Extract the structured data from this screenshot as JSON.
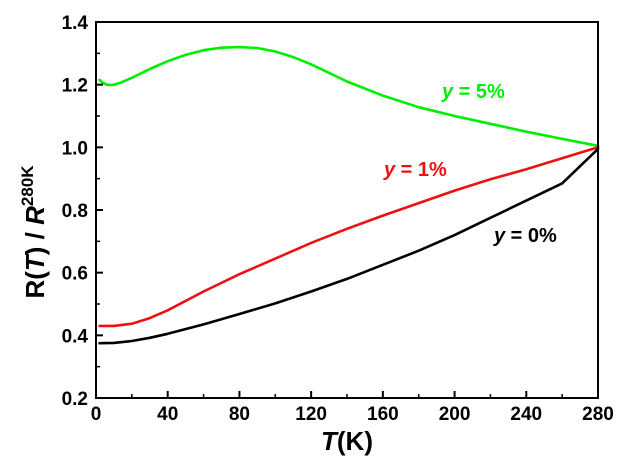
{
  "chart_data": {
    "type": "line",
    "xlabel": "T(K)",
    "ylabel": "R(T) / R280K",
    "xlabel_parts": {
      "var": "T",
      "unit": "(K)"
    },
    "ylabel_parts": {
      "num": "R(",
      "num_var": "T",
      "num_close": ")",
      "slash": " / ",
      "den": "R",
      "sup": "280K"
    },
    "xlim": [
      0,
      280
    ],
    "ylim": [
      0.2,
      1.4
    ],
    "x_ticks": [
      0,
      40,
      80,
      120,
      160,
      200,
      240,
      280
    ],
    "y_ticks": [
      0.2,
      0.4,
      0.6,
      0.8,
      1.0,
      1.2,
      1.4
    ],
    "x_tick_labels": [
      "0",
      "40",
      "80",
      "120",
      "160",
      "200",
      "240",
      "280"
    ],
    "y_tick_labels": [
      "0.2",
      "0.4",
      "0.6",
      "0.8",
      "1.0",
      "1.2",
      "1.4"
    ],
    "grid": false,
    "series": [
      {
        "name": "y = 5%",
        "label_var": "y",
        "label_rest": " = 5%",
        "color": "#00ee00",
        "x": [
          2,
          4,
          6,
          8,
          10,
          14,
          20,
          30,
          40,
          50,
          60,
          70,
          80,
          90,
          100,
          110,
          120,
          140,
          160,
          180,
          200,
          220,
          240,
          260,
          280
        ],
        "y": [
          1.215,
          1.205,
          1.2,
          1.199,
          1.2,
          1.207,
          1.222,
          1.25,
          1.275,
          1.295,
          1.31,
          1.318,
          1.32,
          1.317,
          1.306,
          1.288,
          1.265,
          1.21,
          1.165,
          1.128,
          1.1,
          1.075,
          1.05,
          1.027,
          1.005
        ]
      },
      {
        "name": "y = 1%",
        "label_var": "y",
        "label_rest": " = 1%",
        "color": "#ee1111",
        "x": [
          2,
          10,
          20,
          30,
          40,
          60,
          80,
          100,
          120,
          140,
          160,
          180,
          200,
          220,
          240,
          260,
          280
        ],
        "y": [
          0.43,
          0.43,
          0.437,
          0.455,
          0.48,
          0.54,
          0.595,
          0.645,
          0.695,
          0.74,
          0.782,
          0.822,
          0.862,
          0.898,
          0.93,
          0.965,
          1.0
        ]
      },
      {
        "name": "y = 0%",
        "label_var": "y",
        "label_rest": " = 0%",
        "color": "#000000",
        "x": [
          2,
          10,
          20,
          30,
          40,
          60,
          80,
          100,
          120,
          140,
          160,
          180,
          200,
          220,
          240,
          260,
          280
        ],
        "y": [
          0.375,
          0.376,
          0.382,
          0.392,
          0.405,
          0.435,
          0.468,
          0.502,
          0.54,
          0.58,
          0.625,
          0.67,
          0.72,
          0.775,
          0.83,
          0.885,
          0.995
        ]
      }
    ]
  }
}
